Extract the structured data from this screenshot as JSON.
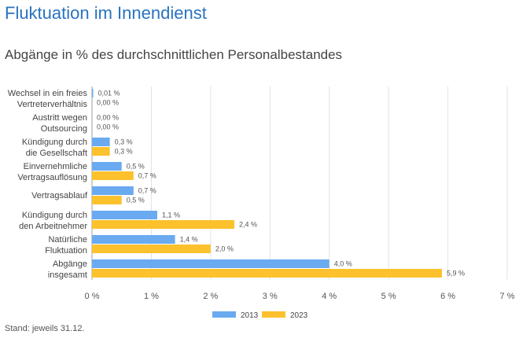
{
  "title": "Fluktuation im Innendienst",
  "subtitle": "Abgänge in % des durchschnittlichen Personalbestandes",
  "footnote": "Stand: jeweils 31.12.",
  "chart_data": {
    "type": "bar",
    "orientation": "horizontal",
    "categories": [
      [
        "Wechsel in ein freies",
        "Vertreterverhältnis"
      ],
      [
        "Austritt wegen",
        "Outsourcing"
      ],
      [
        "Kündigung durch",
        "die Gesellschaft"
      ],
      [
        "Einvernehmliche",
        "Vertragsauflösung"
      ],
      [
        "Vertragsablauf"
      ],
      [
        "Kündigung durch",
        "den Arbeitnehmer"
      ],
      [
        "Natürliche",
        "Fluktuation"
      ],
      [
        "Abgänge",
        "insgesamt"
      ]
    ],
    "series": [
      {
        "name": "2013",
        "color": "#6aaaf0",
        "values": [
          0.01,
          0.0,
          0.3,
          0.5,
          0.7,
          1.1,
          1.4,
          4.0
        ],
        "labels": [
          "0,01 %",
          "0,00 %",
          "0,3 %",
          "0,5 %",
          "0,7 %",
          "1,1 %",
          "1,4 %",
          "4,0 %"
        ]
      },
      {
        "name": "2023",
        "color": "#fcc12c",
        "values": [
          0.0,
          0.0,
          0.3,
          0.7,
          0.5,
          2.4,
          2.0,
          5.9
        ],
        "labels": [
          "0,00 %",
          "0,00 %",
          "0,3 %",
          "0,7 %",
          "0,5 %",
          "2,4 %",
          "2,0 %",
          "5,9 %"
        ]
      }
    ],
    "xlim": [
      0,
      7
    ],
    "xticks": [
      "0 %",
      "1 %",
      "2 %",
      "3 %",
      "4 %",
      "5 %",
      "6 %",
      "7 %"
    ],
    "grid": true,
    "legend": "bottom"
  }
}
